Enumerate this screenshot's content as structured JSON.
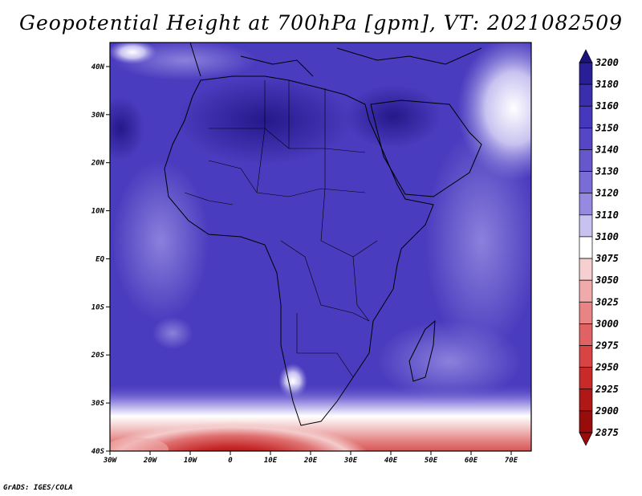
{
  "title": "Geopotential Height at 700hPa [gpm], VT: 2021082509",
  "footer": "GrADS: IGES/COLA",
  "map": {
    "lon_range": [
      -30,
      75
    ],
    "lat_range": [
      -40,
      45
    ],
    "lat_labels": [
      "40N",
      "30N",
      "20N",
      "10N",
      "EQ",
      "10S",
      "20S",
      "30S",
      "40S"
    ],
    "lat_values": [
      40,
      30,
      20,
      10,
      0,
      -10,
      -20,
      -30,
      -40
    ],
    "lon_labels": [
      "30W",
      "20W",
      "10W",
      "0",
      "10E",
      "20E",
      "30E",
      "40E",
      "50E",
      "60E",
      "70E"
    ],
    "lon_values": [
      -30,
      -20,
      -10,
      0,
      10,
      20,
      30,
      40,
      50,
      60,
      70
    ]
  },
  "colorbar": {
    "levels": [
      "3200",
      "3180",
      "3160",
      "3150",
      "3140",
      "3130",
      "3120",
      "3110",
      "3100",
      "3075",
      "3050",
      "3025",
      "3000",
      "2975",
      "2950",
      "2925",
      "2900",
      "2875"
    ],
    "colors": [
      "#1c1478",
      "#2a1e96",
      "#3a2eac",
      "#4638bc",
      "#5446c4",
      "#6658cc",
      "#7a6cd6",
      "#958ae0",
      "#c8c2f0",
      "#ffffff",
      "#f6d0d0",
      "#f0aaaa",
      "#e88484",
      "#e06262",
      "#d84444",
      "#c82a2a",
      "#b01818",
      "#980c0c"
    ]
  }
}
